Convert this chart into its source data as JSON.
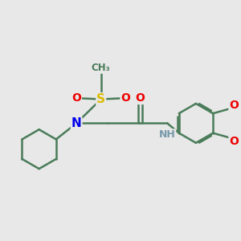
{
  "background_color": "#e8e8e8",
  "bond_color": "#4a7c59",
  "atom_colors": {
    "N": "#0000ee",
    "O": "#ee0000",
    "S": "#ddbb00",
    "C": "#4a7c59",
    "H_label": "#7799aa"
  },
  "bond_width": 1.8,
  "figsize": [
    3.0,
    3.0
  ],
  "dpi": 100,
  "xlim": [
    0.0,
    8.5
  ],
  "ylim": [
    1.2,
    8.0
  ]
}
